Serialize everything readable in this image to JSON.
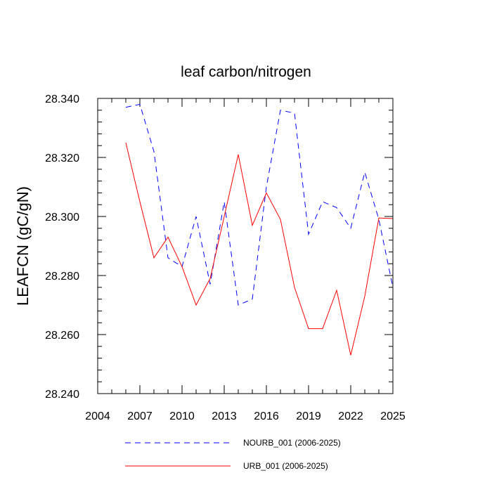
{
  "chart_data": {
    "type": "line",
    "title": "leaf carbon/nitrogen",
    "xlabel": "",
    "ylabel": "LEAFCN  (gC/gN)",
    "xlim": [
      2004,
      2025
    ],
    "ylim": [
      28.24,
      28.34
    ],
    "xticks": [
      "2004",
      "2007",
      "2010",
      "2013",
      "2016",
      "2019",
      "2022",
      "2025"
    ],
    "yticks": [
      "28.240",
      "28.260",
      "28.280",
      "28.300",
      "28.320",
      "28.340"
    ],
    "x": [
      2006,
      2007,
      2008,
      2009,
      2010,
      2011,
      2012,
      2013,
      2014,
      2015,
      2016,
      2017,
      2018,
      2019,
      2020,
      2021,
      2022,
      2023,
      2024,
      2025
    ],
    "series": [
      {
        "name": "NOURB_001 (2006-2025)",
        "color": "#0000ff",
        "style": "dashed",
        "values": [
          28.337,
          28.338,
          28.322,
          28.286,
          28.283,
          28.3,
          28.277,
          28.305,
          28.27,
          28.272,
          28.31,
          28.336,
          28.335,
          28.294,
          28.305,
          28.303,
          28.296,
          28.315,
          28.299,
          28.276
        ]
      },
      {
        "name": "URB_001 (2006-2025)",
        "color": "#ff0000",
        "style": "solid",
        "values": [
          28.325,
          28.305,
          28.286,
          28.293,
          28.283,
          28.27,
          28.279,
          28.3,
          28.321,
          28.297,
          28.308,
          28.299,
          28.276,
          28.262,
          28.262,
          28.275,
          28.253,
          28.273,
          28.2995,
          28.2993
        ]
      }
    ],
    "grid": false,
    "legend": "bottom"
  }
}
